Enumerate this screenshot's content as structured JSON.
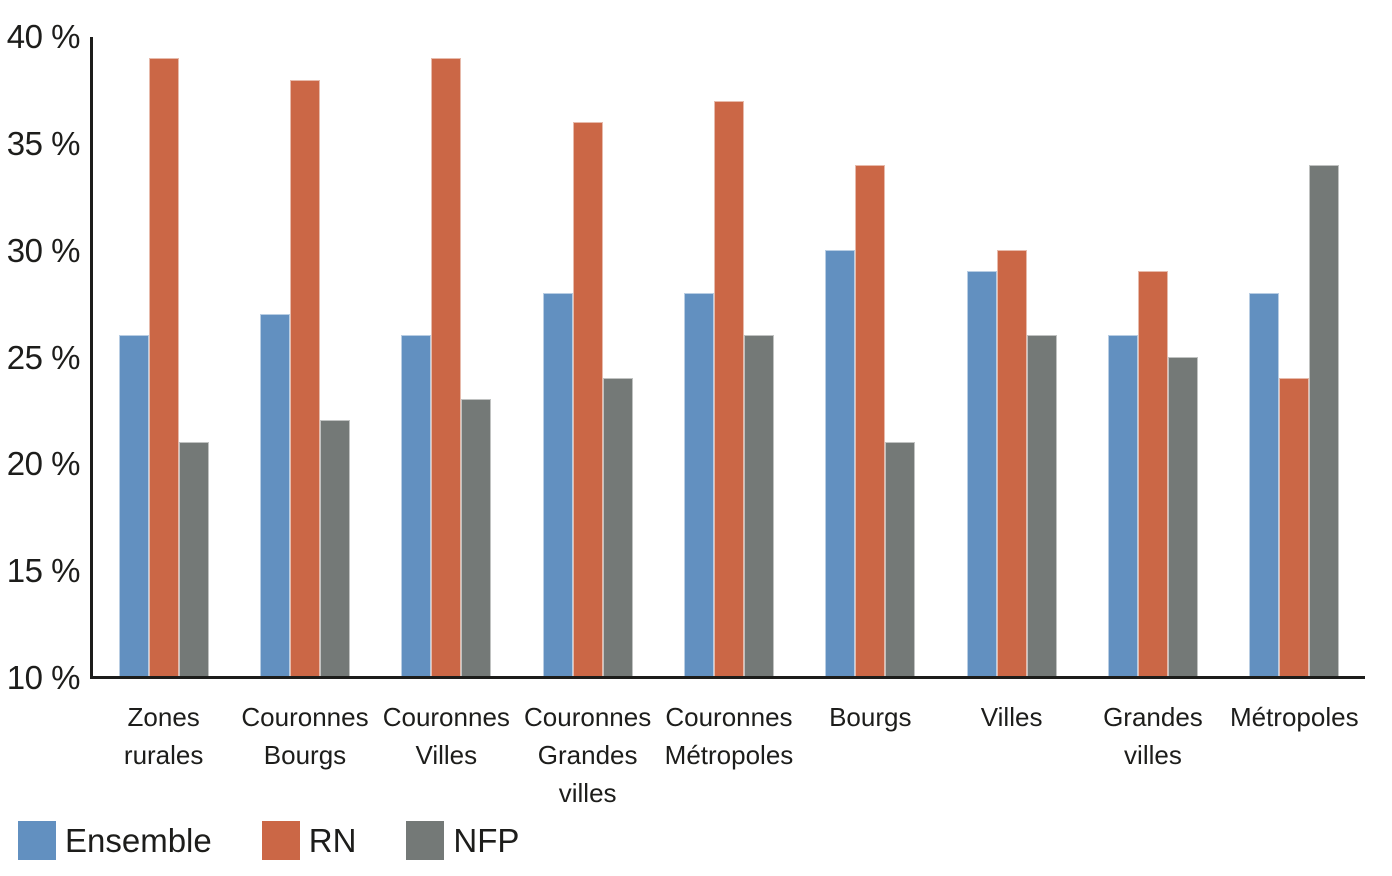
{
  "chart_data": {
    "type": "bar",
    "title": "",
    "xlabel": "",
    "ylabel": "",
    "ylim": [
      10,
      40
    ],
    "ytick_step": 5,
    "yticks": [
      "40 %",
      "35 %",
      "30 %",
      "25 %",
      "20 %",
      "15 %",
      "10 %"
    ],
    "grid": false,
    "legend_position": "bottom-left",
    "categories": [
      "Zones rurales",
      "Couronnes Bourgs",
      "Couronnes Villes",
      "Couronnes Grandes villes",
      "Couronnes Métropoles",
      "Bourgs",
      "Villes",
      "Grandes villes",
      "Métropoles"
    ],
    "series": [
      {
        "name": "Ensemble",
        "color": "#6290c0",
        "values": [
          26,
          27,
          26,
          28,
          28,
          30,
          29,
          26,
          28
        ]
      },
      {
        "name": "RN",
        "color": "#cb6746",
        "values": [
          39,
          38,
          39,
          36,
          37,
          34,
          30,
          29,
          24
        ]
      },
      {
        "name": "NFP",
        "color": "#747977",
        "values": [
          21,
          22,
          23,
          24,
          26,
          21,
          26,
          25,
          34
        ]
      }
    ]
  },
  "style_colors": {
    "axis": "#1d1d1b",
    "text": "#1d1d1b",
    "background": "#ffffff"
  }
}
